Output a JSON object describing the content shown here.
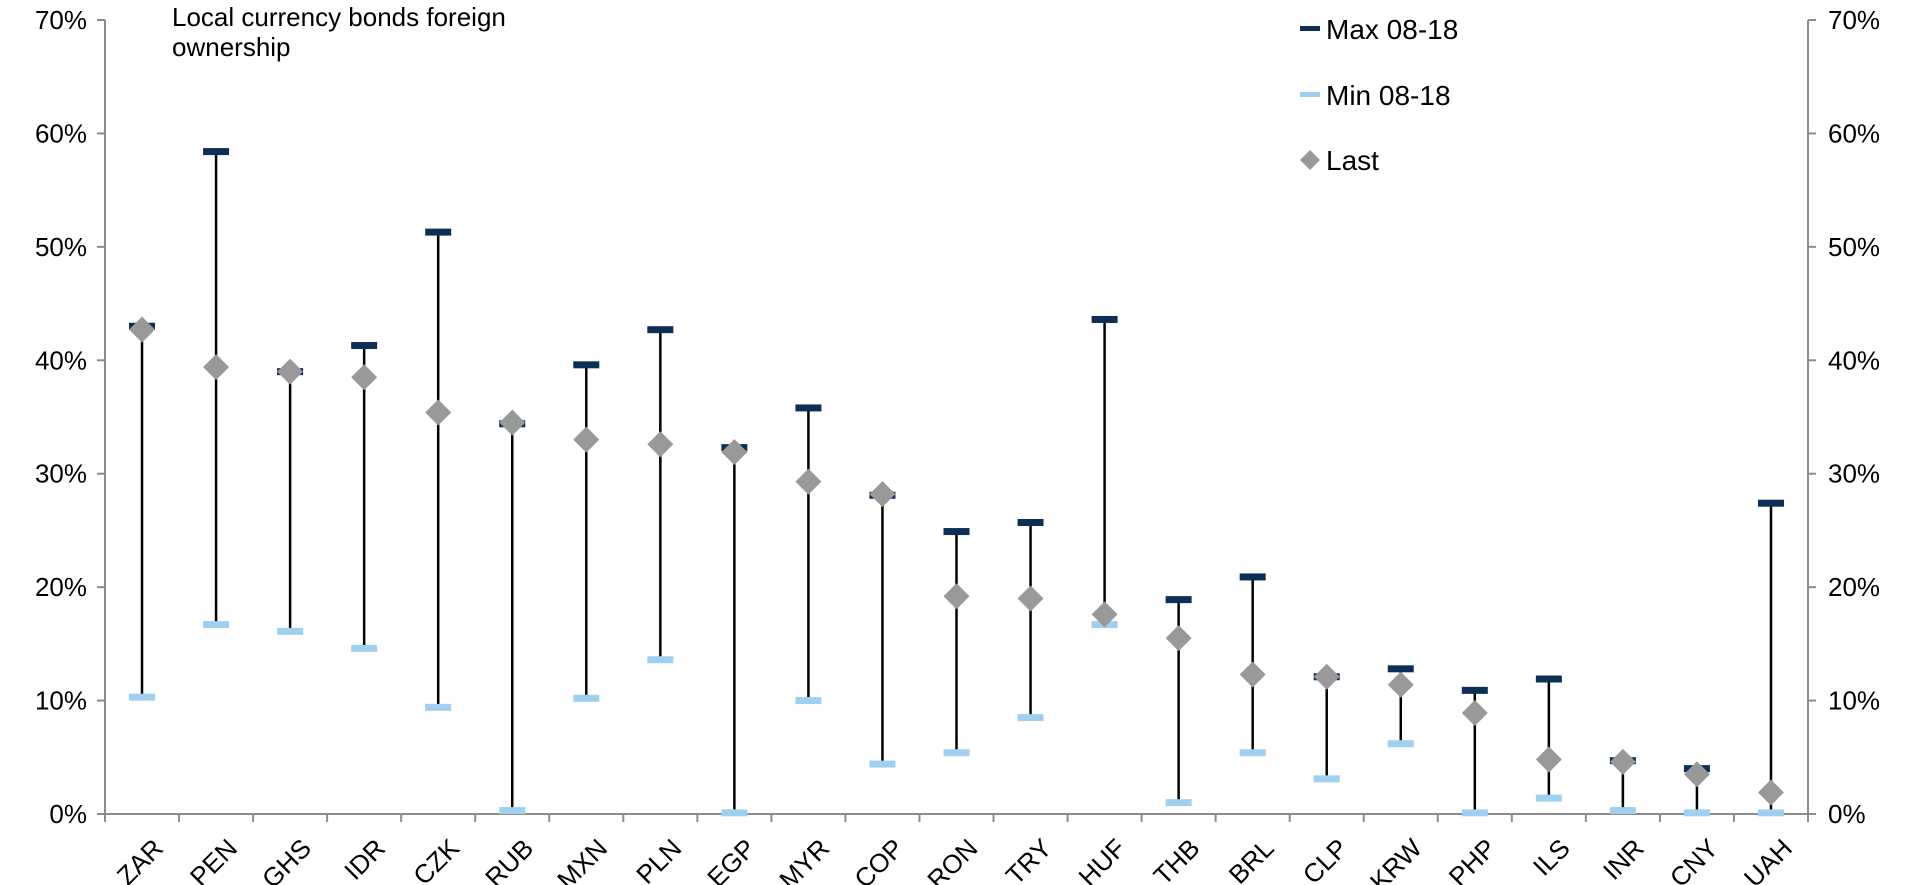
{
  "chart_data": {
    "type": "range",
    "title_lines": [
      "Local currency bonds foreign",
      "ownership"
    ],
    "categories": [
      "ZAR",
      "PEN",
      "GHS",
      "IDR",
      "CZK",
      "RUB",
      "MXN",
      "PLN",
      "EGP",
      "MYR",
      "COP",
      "RON",
      "TRY",
      "HUF",
      "THB",
      "BRL",
      "CLP",
      "KRW",
      "PHP",
      "ILS",
      "INR",
      "CNY",
      "UAH"
    ],
    "series": [
      {
        "name": "Max 08-18",
        "marker": "dash",
        "color": "#0b2f56",
        "values": [
          43.0,
          58.4,
          39.0,
          41.3,
          51.3,
          34.4,
          39.6,
          42.7,
          32.3,
          35.8,
          28.1,
          24.9,
          25.7,
          43.6,
          18.9,
          20.9,
          12.1,
          12.8,
          10.9,
          11.9,
          4.7,
          4.0,
          27.4
        ]
      },
      {
        "name": "Min 08-18",
        "marker": "dash",
        "color": "#9fd0f0",
        "values": [
          10.3,
          16.7,
          16.1,
          14.6,
          9.4,
          0.3,
          10.2,
          13.6,
          0.1,
          10.0,
          4.4,
          5.4,
          8.5,
          16.7,
          1.0,
          5.4,
          3.1,
          6.2,
          0.1,
          1.4,
          0.3,
          0.1,
          0.1
        ]
      },
      {
        "name": "Last",
        "marker": "diamond",
        "color": "#999999",
        "values": [
          42.7,
          39.4,
          39.0,
          38.5,
          35.4,
          34.5,
          33.0,
          32.6,
          31.9,
          29.3,
          28.2,
          19.2,
          19.0,
          17.6,
          15.5,
          12.3,
          12.1,
          11.4,
          8.9,
          4.8,
          4.6,
          3.5,
          1.9
        ]
      }
    ],
    "y_ticks": [
      "0%",
      "10%",
      "20%",
      "30%",
      "40%",
      "50%",
      "60%",
      "70%"
    ],
    "ylim": [
      0,
      70
    ],
    "y_axis": "both-sides",
    "grid": false,
    "legend_position": "top-right"
  }
}
